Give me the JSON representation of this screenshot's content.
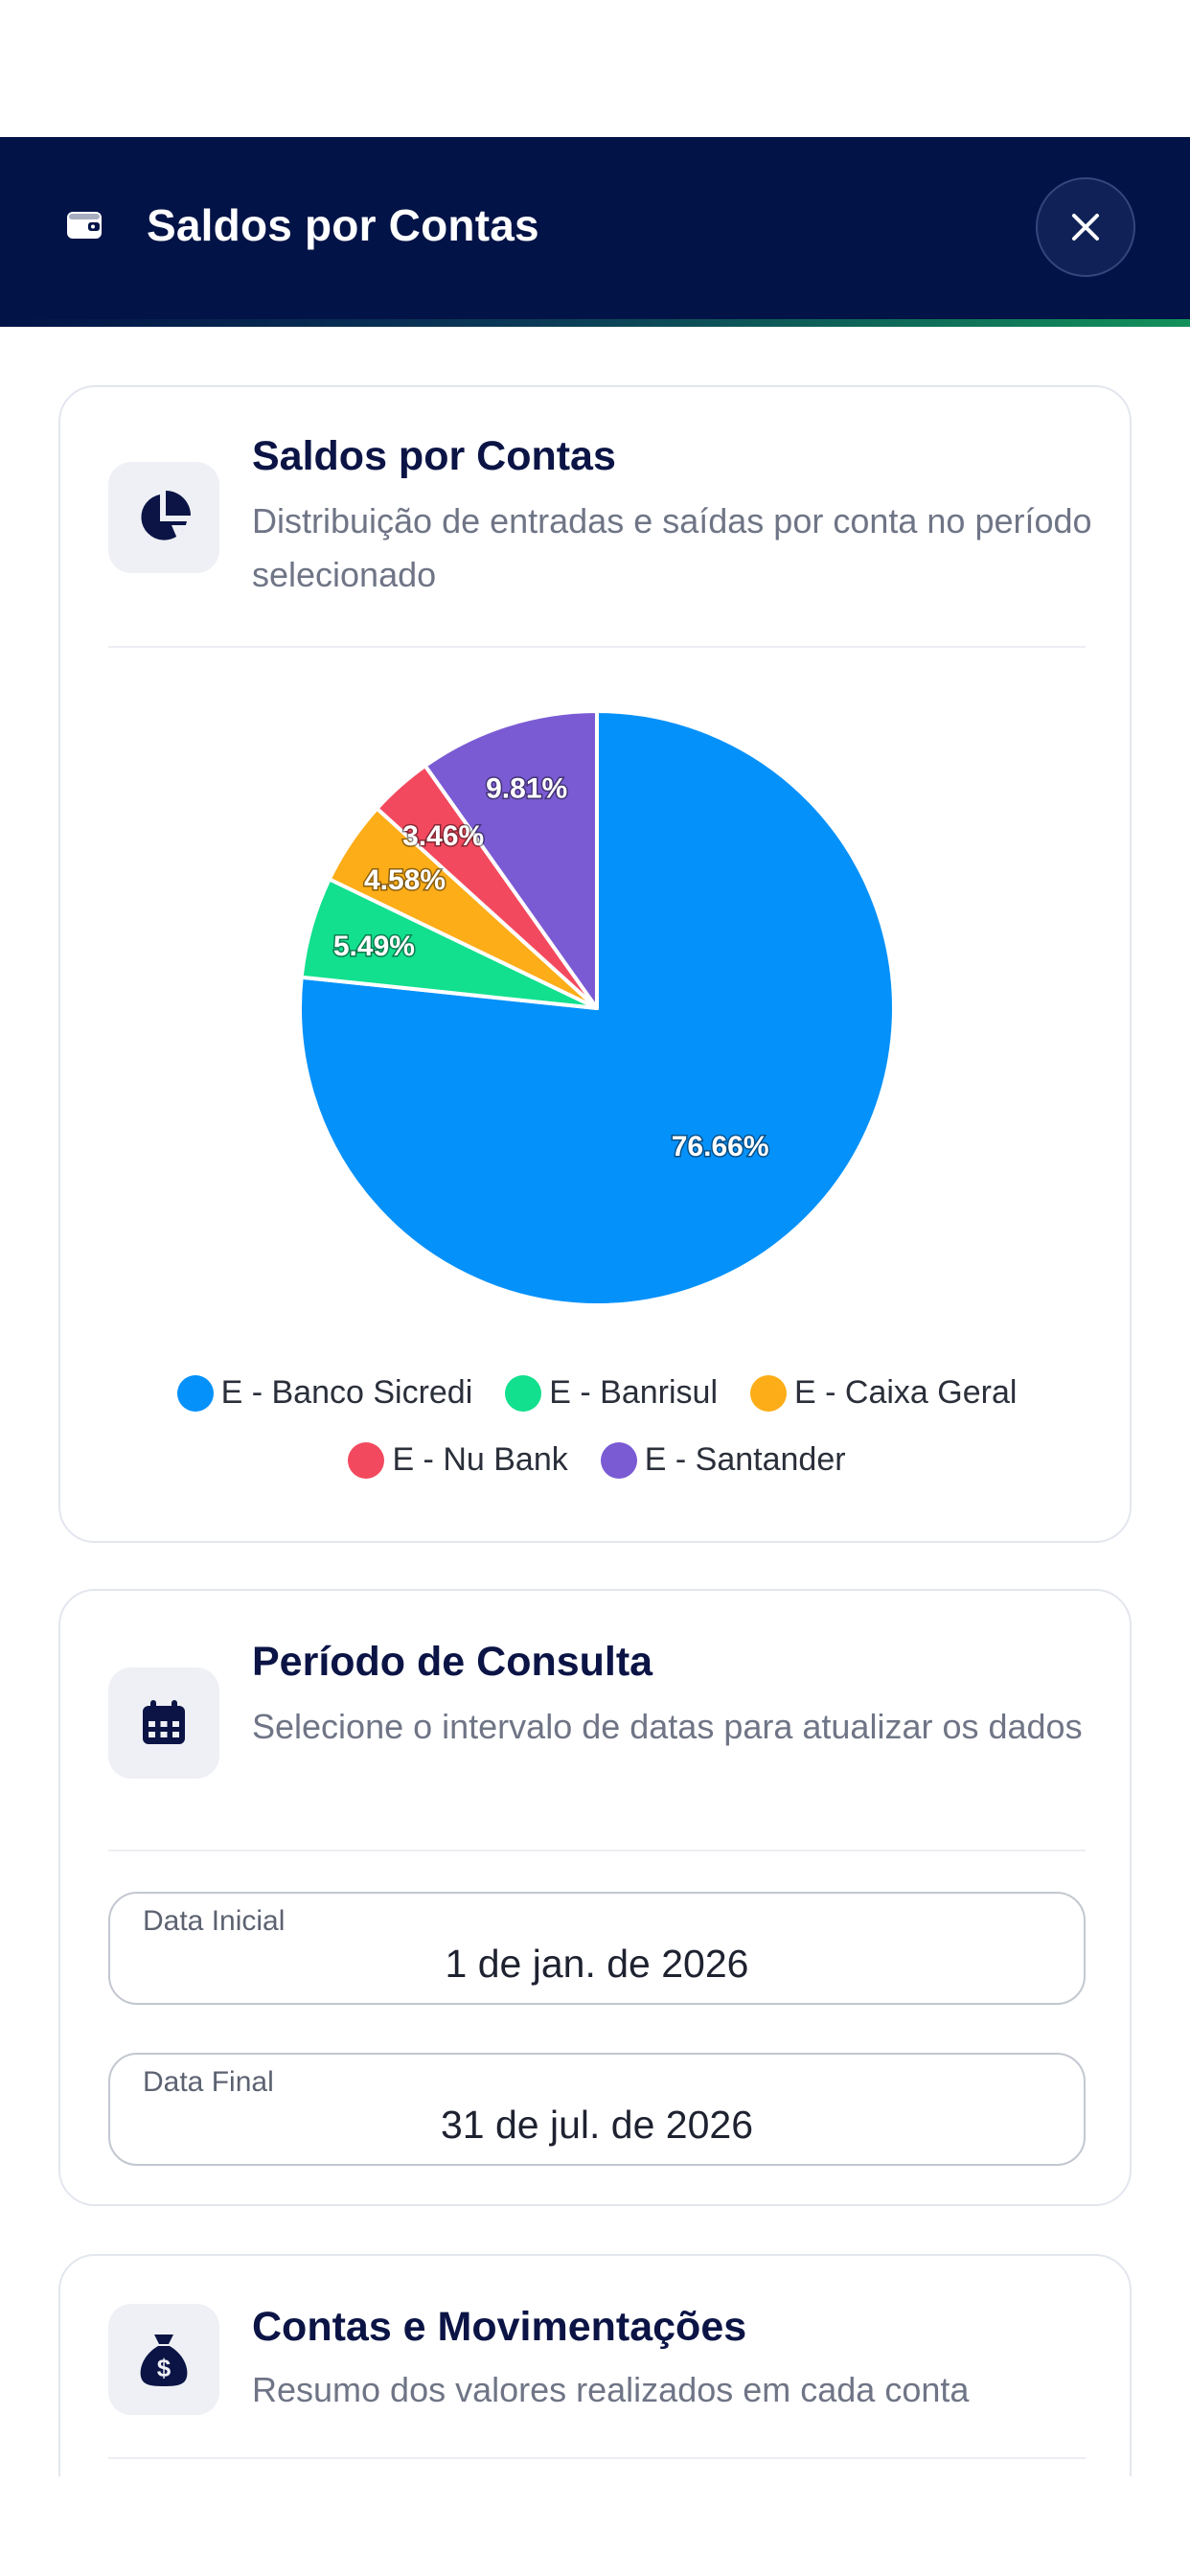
{
  "header": {
    "title": "Saldos por Contas",
    "icon": "wallet-icon",
    "close_icon": "close-icon"
  },
  "chart_card": {
    "title": "Saldos por Contas",
    "subtitle": "Distribuição de entradas e saídas por conta no período selecionado",
    "icon": "pie-chart-icon"
  },
  "chart_data": {
    "type": "pie",
    "title": "",
    "slices": [
      {
        "label": "E - Banco Sicredi",
        "value": 76.66,
        "display": "76.66%",
        "color": "#0591fa"
      },
      {
        "label": "E - Banrisul",
        "value": 5.49,
        "display": "5.49%",
        "color": "#12e08e"
      },
      {
        "label": "E - Caixa Geral",
        "value": 4.58,
        "display": "4.58%",
        "color": "#fdad18"
      },
      {
        "label": "E - Nu Bank",
        "value": 3.46,
        "display": "3.46%",
        "color": "#f3495e"
      },
      {
        "label": "E - Santander",
        "value": 9.81,
        "display": "9.81%",
        "color": "#7a5bd4"
      }
    ],
    "legend_position": "bottom"
  },
  "period_card": {
    "title": "Período de Consulta",
    "subtitle": "Selecione o intervalo de datas para atualizar os dados",
    "icon": "calendar-icon",
    "start_label": "Data Inicial",
    "start_value": "1 de jan. de 2026",
    "end_label": "Data Final",
    "end_value": "31 de jul. de 2026"
  },
  "accounts_card": {
    "title": "Contas e Movimentações",
    "subtitle": "Resumo dos valores realizados em cada conta",
    "icon": "money-bag-icon"
  }
}
